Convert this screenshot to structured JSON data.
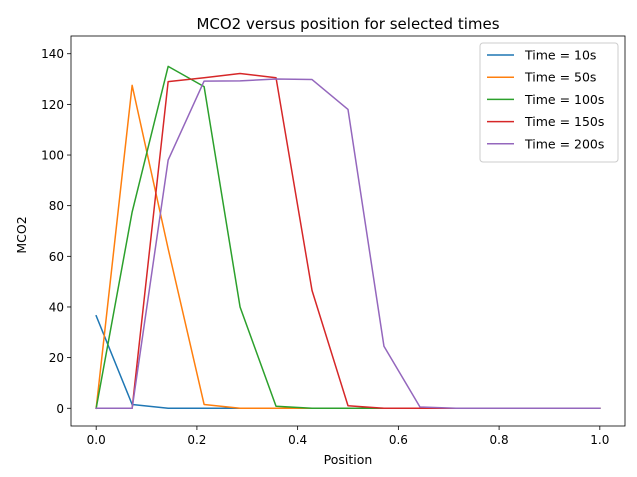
{
  "chart_data": {
    "type": "line",
    "title": "MCO2 versus position for selected times",
    "xlabel": "Position",
    "ylabel": "MCO2",
    "xlim": [
      -0.05,
      1.05
    ],
    "ylim": [
      -7,
      147
    ],
    "xticks": [
      0.0,
      0.2,
      0.4,
      0.6,
      0.8,
      1.0
    ],
    "xtick_labels": [
      "0.0",
      "0.2",
      "0.4",
      "0.6",
      "0.8",
      "1.0"
    ],
    "yticks": [
      0,
      20,
      40,
      60,
      80,
      100,
      120,
      140
    ],
    "ytick_labels": [
      "0",
      "20",
      "40",
      "60",
      "80",
      "100",
      "120",
      "140"
    ],
    "grid": false,
    "legend_position": "top-right",
    "x": [
      0.0,
      0.0714,
      0.1429,
      0.2143,
      0.2857,
      0.3571,
      0.4286,
      0.5,
      0.5714,
      0.6429,
      0.7143,
      0.7857,
      0.8571,
      0.9286,
      1.0
    ],
    "series": [
      {
        "name": "Time = 10s",
        "color": "#1f77b4",
        "values": [
          36.5,
          1.5,
          0,
          0,
          0,
          0,
          0,
          0,
          0,
          0,
          0,
          0,
          0,
          0,
          0
        ]
      },
      {
        "name": "Time = 50s",
        "color": "#ff7f0e",
        "values": [
          0,
          127.5,
          63,
          1.5,
          0,
          0,
          0,
          0,
          0,
          0,
          0,
          0,
          0,
          0,
          0
        ]
      },
      {
        "name": "Time = 100s",
        "color": "#2ca02c",
        "values": [
          0,
          77.5,
          135,
          127,
          40,
          0.8,
          0,
          0,
          0,
          0,
          0,
          0,
          0,
          0,
          0
        ]
      },
      {
        "name": "Time = 150s",
        "color": "#d62728",
        "values": [
          0,
          0,
          129,
          130.5,
          132.2,
          130.5,
          46.5,
          1,
          0,
          0,
          0,
          0,
          0,
          0,
          0
        ]
      },
      {
        "name": "Time = 200s",
        "color": "#9467bd",
        "values": [
          0,
          0,
          98,
          129.2,
          129.3,
          130,
          129.8,
          118,
          24.5,
          0.5,
          0,
          0,
          0,
          0,
          0
        ]
      }
    ]
  }
}
